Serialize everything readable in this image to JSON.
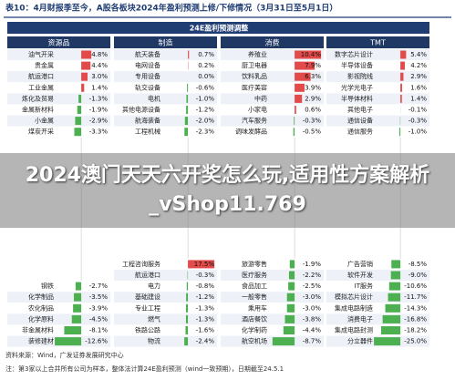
{
  "header": {
    "title": "表10：4月财报季至今，A股各板块2024年盈利预测上修/下修情况（3月31日至5月1日）"
  },
  "table": {
    "title": "24E盈利预测调整",
    "groups": [
      {
        "name": "资源品",
        "top": [
          {
            "label": "油气开采",
            "value": 4.8,
            "value_label": "4.8%"
          },
          {
            "label": "贵金属",
            "value": 4.4,
            "value_label": "4.4%"
          },
          {
            "label": "航运港口",
            "value": 3.0,
            "value_label": "3.0%"
          },
          {
            "label": "工业金属",
            "value": 1.4,
            "value_label": "1.4%"
          },
          {
            "label": "炼化及贸易",
            "value": -1.3,
            "value_label": "-1.3%"
          },
          {
            "label": "金属新材料",
            "value": -1.9,
            "value_label": "-1.9%"
          },
          {
            "label": "小金属",
            "value": -2.9,
            "value_label": "-2.9%"
          },
          {
            "label": "煤炭开采",
            "value": -3.3,
            "value_label": "-3.3%"
          }
        ],
        "bottom": [
          {
            "label": "钢铁",
            "value": -2.7,
            "value_label": "-2.7%"
          },
          {
            "label": "化学制品",
            "value": -3.5,
            "value_label": "-3.5%"
          },
          {
            "label": "农化制品",
            "value": -3.9,
            "value_label": "-3.9%"
          },
          {
            "label": "化学原料",
            "value": -4.5,
            "value_label": "-4.5%"
          },
          {
            "label": "非金属材料",
            "value": -8.1,
            "value_label": "-8.1%"
          },
          {
            "label": "装修建材",
            "value": -12.6,
            "value_label": "-12.6%"
          }
        ]
      },
      {
        "name": "制造",
        "top": [
          {
            "label": "航天装备",
            "value": 0.7,
            "value_label": "0.7%"
          },
          {
            "label": "电网设备",
            "value": 0.2,
            "value_label": "0.2%"
          },
          {
            "label": "专用设备",
            "value": 0.0,
            "value_label": "0.0%"
          },
          {
            "label": "轨交设备",
            "value": -0.6,
            "value_label": "-0.6%"
          },
          {
            "label": "电机",
            "value": -1.0,
            "value_label": "-1.0%"
          },
          {
            "label": "其他电源设备",
            "value": -1.2,
            "value_label": "-1.2%"
          },
          {
            "label": "航海装备",
            "value": -2.0,
            "value_label": "-2.0%"
          },
          {
            "label": "工程机械",
            "value": -2.3,
            "value_label": "-2.3%"
          }
        ],
        "bottom": [
          {
            "label": "工程咨询服务",
            "value": 17.5,
            "value_label": "17.5%"
          },
          {
            "label": "航运港口",
            "value": -0.3,
            "value_label": "-0.3%"
          },
          {
            "label": "电力",
            "value": -0.8,
            "value_label": "-0.8%"
          },
          {
            "label": "基础建设",
            "value": -1.2,
            "value_label": "-1.2%"
          },
          {
            "label": "专业工程",
            "value": -1.3,
            "value_label": "-1.3%"
          },
          {
            "label": "燃气",
            "value": -1.3,
            "value_label": "-1.3%"
          },
          {
            "label": "铁路公路",
            "value": -1.6,
            "value_label": "-1.6%"
          },
          {
            "label": "物流",
            "value": -2.4,
            "value_label": "-2.4%"
          }
        ]
      },
      {
        "name": "消费",
        "top": [
          {
            "label": "养殖业",
            "value": 10.4,
            "value_label": "10.4%"
          },
          {
            "label": "厨卫电器",
            "value": 7.9,
            "value_label": "7.9%"
          },
          {
            "label": "饮料乳品",
            "value": 6.3,
            "value_label": "6.3%"
          },
          {
            "label": "医疗美容",
            "value": 3.9,
            "value_label": "3.9%"
          },
          {
            "label": "中药",
            "value": 2.9,
            "value_label": "2.9%"
          },
          {
            "label": "小家电",
            "value": 0.6,
            "value_label": "0.6%"
          },
          {
            "label": "汽车服务",
            "value": -0.3,
            "value_label": "-0.3%"
          },
          {
            "label": "调味发酵品",
            "value": -0.5,
            "value_label": "-0.5%"
          }
        ],
        "bottom": [
          {
            "label": "旅游零售",
            "value": -1.9,
            "value_label": "-1.9%"
          },
          {
            "label": "医疗服务",
            "value": -2.2,
            "value_label": "-2.2%"
          },
          {
            "label": "食品加工",
            "value": -2.5,
            "value_label": "-2.5%"
          },
          {
            "label": "一般零售",
            "value": -3.0,
            "value_label": "-3.0%"
          },
          {
            "label": "乘用车",
            "value": -3.0,
            "value_label": "-3.0%"
          },
          {
            "label": "酒店餐饮",
            "value": -3.8,
            "value_label": "-3.8%"
          },
          {
            "label": "化学制药",
            "value": -4.4,
            "value_label": "-4.4%"
          },
          {
            "label": "航空机场",
            "value": -8.7,
            "value_label": "-8.7%"
          }
        ]
      },
      {
        "name": "TMT",
        "top": [
          {
            "label": "数字芯片设计",
            "value": 5.4,
            "value_label": "5.4%"
          },
          {
            "label": "半导体设备",
            "value": 4.2,
            "value_label": "4.2%"
          },
          {
            "label": "影视院线",
            "value": 2.9,
            "value_label": "2.9%"
          },
          {
            "label": "光学光电子",
            "value": 1.6,
            "value_label": "1.6%"
          },
          {
            "label": "半导体材料",
            "value": 1.4,
            "value_label": "1.4%"
          },
          {
            "label": "其他电子",
            "value": -0.1,
            "value_label": "-0.1%"
          },
          {
            "label": "通信设备",
            "value": -0.3,
            "value_label": "-0.3%"
          },
          {
            "label": "通信服务",
            "value": -1.0,
            "value_label": "-1.0%"
          }
        ],
        "bottom": [
          {
            "label": "广告营销",
            "value": -8.5,
            "value_label": "-8.5%"
          },
          {
            "label": "软件开发",
            "value": -9.0,
            "value_label": "-9.0%"
          },
          {
            "label": "IT服务",
            "value": -10.6,
            "value_label": "-10.6%"
          },
          {
            "label": "模拟芯片设计",
            "value": -11.7,
            "value_label": "-11.7%"
          },
          {
            "label": "集成电路制造",
            "value": -14.3,
            "value_label": "-14.3%"
          },
          {
            "label": "消费电子",
            "value": -16.8,
            "value_label": "-16.8%"
          },
          {
            "label": "集成电路封测",
            "value": -18.2,
            "value_label": "-18.2%"
          },
          {
            "label": "分立器件",
            "value": -25.0,
            "value_label": "-25.0%"
          }
        ]
      }
    ]
  },
  "footer": {
    "source": "资料来源：Wind，广发证券发展研究中心",
    "note": "注：第3家以上合并所有公司为样本，整体法计算24E盈利预测（wind一致预期），日期截至24.5.1"
  },
  "overlay": {
    "text": "2024澳门天天六开奖怎么玩,适用性方案解析_vShop11.769"
  }
}
